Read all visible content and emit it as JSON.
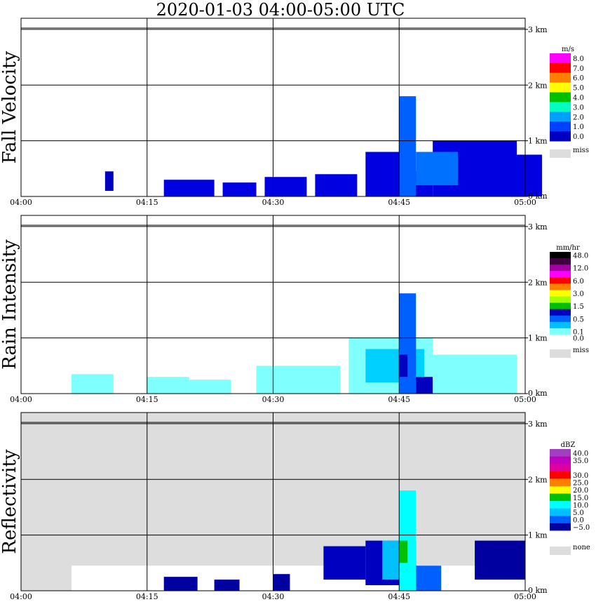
{
  "chart_data": {
    "type": "heatmap",
    "title": "2020-01-03   04:00-05:00 UTC",
    "x_ticks": [
      "04:00",
      "04:15",
      "04:30",
      "04:45",
      "05:00"
    ],
    "y_ticks": [
      "0 km",
      "1 km",
      "2 km",
      "3 km"
    ],
    "panels": [
      {
        "ylabel": "Fall Velocity",
        "unit": "m/s",
        "background": "#ffffff",
        "colorbar": [
          {
            "label": "8.0",
            "color": "#ff00ff"
          },
          {
            "label": "7.0",
            "color": "#ff0000"
          },
          {
            "label": "6.0",
            "color": "#ff8000"
          },
          {
            "label": "5.0",
            "color": "#ffff00"
          },
          {
            "label": "4.0",
            "color": "#00c000"
          },
          {
            "label": "3.0",
            "color": "#00ffc0"
          },
          {
            "label": "2.0",
            "color": "#00a0ff"
          },
          {
            "label": "1.0",
            "color": "#0040ff"
          },
          {
            "label": "0.0",
            "color": "#0000c0"
          }
        ],
        "extra_keys": [
          {
            "label": "miss",
            "color": "#dddddd"
          }
        ],
        "cells": [
          {
            "t": 10,
            "h": 0.1,
            "w": 1,
            "ht": 0.35,
            "c": "#0000c0"
          },
          {
            "t": 17,
            "h": 0.0,
            "w": 6,
            "ht": 0.3,
            "c": "#0000e0"
          },
          {
            "t": 24,
            "h": 0.0,
            "w": 4,
            "ht": 0.25,
            "c": "#0000e0"
          },
          {
            "t": 29,
            "h": 0.0,
            "w": 5,
            "ht": 0.35,
            "c": "#0000e0"
          },
          {
            "t": 35,
            "h": 0.0,
            "w": 5,
            "ht": 0.4,
            "c": "#0000e0"
          },
          {
            "t": 41,
            "h": 0.0,
            "w": 4,
            "ht": 0.8,
            "c": "#0000e0"
          },
          {
            "t": 45,
            "h": 0.0,
            "w": 4,
            "ht": 0.45,
            "c": "#0000e0"
          },
          {
            "t": 49,
            "h": 0.0,
            "w": 10,
            "ht": 1.0,
            "c": "#0000e0"
          },
          {
            "t": 45,
            "h": 0.0,
            "w": 2,
            "ht": 1.8,
            "c": "#0060ff"
          },
          {
            "t": 47,
            "h": 0.2,
            "w": 5,
            "ht": 0.6,
            "c": "#0070ff"
          },
          {
            "t": 55,
            "h": 0.0,
            "w": 7,
            "ht": 0.75,
            "c": "#0000e0"
          }
        ]
      },
      {
        "ylabel": "Rain Intensity",
        "unit": "mm/hr",
        "background": "#ffffff",
        "colorbar": [
          {
            "label": "48.0",
            "color": "#000000"
          },
          {
            "label": "",
            "color": "#400040"
          },
          {
            "label": "12.0",
            "color": "#a000a0"
          },
          {
            "label": "",
            "color": "#ff00ff"
          },
          {
            "label": "6.0",
            "color": "#ff0000"
          },
          {
            "label": "",
            "color": "#ff8000"
          },
          {
            "label": "3.0",
            "color": "#ffff00"
          },
          {
            "label": "",
            "color": "#a0ff00"
          },
          {
            "label": "1.5",
            "color": "#00c000"
          },
          {
            "label": "",
            "color": "#0000c0"
          },
          {
            "label": "0.5",
            "color": "#0060ff"
          },
          {
            "label": "",
            "color": "#00c0ff"
          },
          {
            "label": "0.1",
            "color": "#80ffff"
          },
          {
            "label": "0.0",
            "color": "#ffffff"
          }
        ],
        "extra_keys": [
          {
            "label": "miss",
            "color": "#dddddd"
          }
        ],
        "cells": [
          {
            "t": 6,
            "h": 0.0,
            "w": 5,
            "ht": 0.35,
            "c": "#80ffff"
          },
          {
            "t": 15,
            "h": 0.0,
            "w": 5,
            "ht": 0.3,
            "c": "#80ffff"
          },
          {
            "t": 20,
            "h": 0.0,
            "w": 5,
            "ht": 0.25,
            "c": "#80ffff"
          },
          {
            "t": 28,
            "h": 0.0,
            "w": 10,
            "ht": 0.5,
            "c": "#80ffff"
          },
          {
            "t": 39,
            "h": 0.0,
            "w": 10,
            "ht": 1.0,
            "c": "#80ffff"
          },
          {
            "t": 41,
            "h": 0.2,
            "w": 7,
            "ht": 0.6,
            "c": "#00d0ff"
          },
          {
            "t": 45,
            "h": 0.0,
            "w": 2,
            "ht": 1.8,
            "c": "#0060ff"
          },
          {
            "t": 45,
            "h": 0.3,
            "w": 1,
            "ht": 0.4,
            "c": "#0000c0"
          },
          {
            "t": 47,
            "h": 0.0,
            "w": 2,
            "ht": 0.3,
            "c": "#0000c0"
          },
          {
            "t": 49,
            "h": 0.0,
            "w": 10,
            "ht": 0.7,
            "c": "#80ffff"
          }
        ]
      },
      {
        "ylabel": "Reflectivity",
        "unit": "dBZ",
        "background": "#dddddd",
        "colorbar": [
          {
            "label": "40.0",
            "color": "#a040c0"
          },
          {
            "label": "35.0",
            "color": "#c000c0"
          },
          {
            "label": "",
            "color": "#e000a0"
          },
          {
            "label": "30.0",
            "color": "#ff0000"
          },
          {
            "label": "25.0",
            "color": "#ff8000"
          },
          {
            "label": "20.0",
            "color": "#ffff00"
          },
          {
            "label": "15.0",
            "color": "#00c000"
          },
          {
            "label": "10.0",
            "color": "#00ffff"
          },
          {
            "label": "5.0",
            "color": "#00c0ff"
          },
          {
            "label": "0.0",
            "color": "#0060ff"
          },
          {
            "label": "−5.0",
            "color": "#0000a0"
          },
          {
            "label": "",
            "color": "#ffffff"
          }
        ],
        "extra_keys": [
          {
            "label": "none",
            "color": "#dddddd"
          }
        ],
        "cells": [
          {
            "t": 6,
            "h": 0.0,
            "w": 54,
            "ht": 0.45,
            "c": "#ffffff"
          },
          {
            "t": 17,
            "h": 0.0,
            "w": 4,
            "ht": 0.25,
            "c": "#0000a0"
          },
          {
            "t": 23,
            "h": 0.0,
            "w": 3,
            "ht": 0.2,
            "c": "#0000a0"
          },
          {
            "t": 30,
            "h": 0.0,
            "w": 2,
            "ht": 0.3,
            "c": "#0000a0"
          },
          {
            "t": 36,
            "h": 0.2,
            "w": 5,
            "ht": 0.6,
            "c": "#0000c0"
          },
          {
            "t": 41,
            "h": 0.1,
            "w": 6,
            "ht": 0.8,
            "c": "#0000c0"
          },
          {
            "t": 43,
            "h": 0.2,
            "w": 4,
            "ht": 0.7,
            "c": "#00c0ff"
          },
          {
            "t": 45,
            "h": 0.0,
            "w": 2,
            "ht": 1.8,
            "c": "#00ffff"
          },
          {
            "t": 45,
            "h": 0.5,
            "w": 1,
            "ht": 0.4,
            "c": "#00c000"
          },
          {
            "t": 47,
            "h": 0.0,
            "w": 3,
            "ht": 0.45,
            "c": "#0060ff"
          },
          {
            "t": 54,
            "h": 0.2,
            "w": 6,
            "ht": 0.7,
            "c": "#0000a0"
          }
        ]
      }
    ]
  }
}
